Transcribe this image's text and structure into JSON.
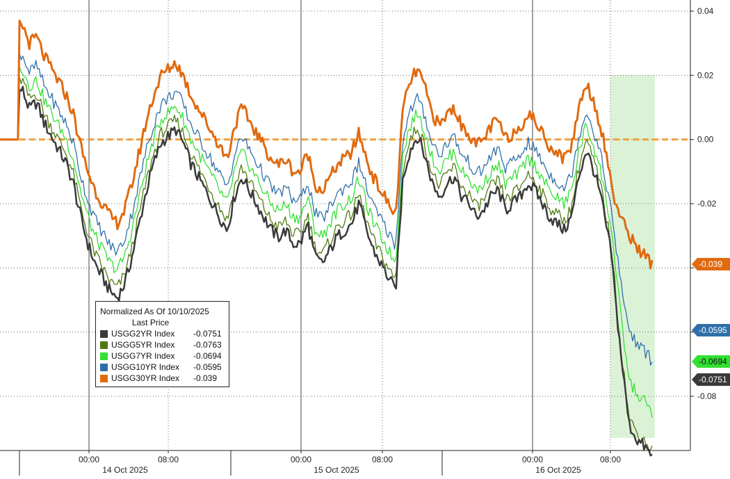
{
  "chart_data": {
    "type": "line",
    "title": "",
    "xlabel": "",
    "ylabel": "",
    "ylim": [
      -0.092,
      0.042
    ],
    "yticks": [
      0.04,
      0.02,
      0.0,
      -0.02,
      -0.04,
      -0.06,
      -0.08
    ],
    "ytick_labels": [
      "0.04",
      "0.02",
      "0.00",
      "-0.02",
      "",
      "",
      "-0.08"
    ],
    "x_tick_labels": [
      "00:00",
      "08:00",
      "00:00",
      "08:00",
      "00:00",
      "08:00"
    ],
    "x_date_labels": [
      "14 Oct 2025",
      "15 Oct 2025",
      "16 Oct 2025"
    ],
    "zero_line_color": "#f0a040",
    "highlight_color": "#d6f0d0",
    "legend": {
      "title": "Normalized As Of 10/10/2025",
      "subtitle": "Last Price",
      "placement": "bottom-left"
    },
    "series": [
      {
        "name": "USGG2YR Index",
        "last": "-0.0751",
        "color": "#3a3a3a"
      },
      {
        "name": "USGG5YR Index",
        "last": "-0.0763",
        "color": "#4f7a10"
      },
      {
        "name": "USGG7YR Index",
        "last": "-0.0694",
        "color": "#33e033"
      },
      {
        "name": "USGG10YR Index",
        "last": "-0.0595",
        "color": "#2f6fa8"
      },
      {
        "name": "USGG30YR Index",
        "last": "-0.039",
        "color": "#e06a10"
      }
    ],
    "right_tags": [
      {
        "label": "-0.039",
        "color": "#e06a10"
      },
      {
        "label": "-0.0595",
        "color": "#2f6fa8"
      },
      {
        "label": "-0.0694",
        "color": "#33e033"
      },
      {
        "label": "-0.0751",
        "color": "#3a3a3a"
      }
    ],
    "series_30y": [
      0,
      0,
      0.034,
      0.036,
      0.03,
      0.032,
      0.026,
      0.022,
      0.018,
      0.014,
      0.008,
      -0.002,
      -0.01,
      -0.016,
      -0.02,
      -0.024,
      -0.026,
      -0.022,
      -0.014,
      -0.004,
      0.006,
      0.014,
      0.02,
      0.022,
      0.024,
      0.02,
      0.014,
      0.01,
      0.006,
      0.002,
      -0.002,
      -0.006,
      0.004,
      0.01,
      0.006,
      0.002,
      -0.002,
      -0.006,
      -0.008,
      -0.006,
      -0.01,
      -0.01,
      -0.004,
      -0.014,
      -0.016,
      -0.012,
      -0.008,
      -0.006,
      -0.004,
      0.002,
      -0.006,
      -0.012,
      -0.016,
      -0.02,
      -0.024,
      0.01,
      0.018,
      0.022,
      0.016,
      0.008,
      0.004,
      0.008,
      0.01,
      0.004,
      0.002,
      -0.002,
      0.0,
      0.004,
      0.006,
      0.0,
      0.002,
      0.004,
      0.008,
      0.006,
      0.002,
      -0.002,
      -0.004,
      -0.006,
      -0.002,
      0.01,
      0.018,
      0.012,
      0.004,
      -0.008,
      -0.02,
      -0.026,
      -0.03,
      -0.034,
      -0.036,
      -0.039
    ]
  }
}
